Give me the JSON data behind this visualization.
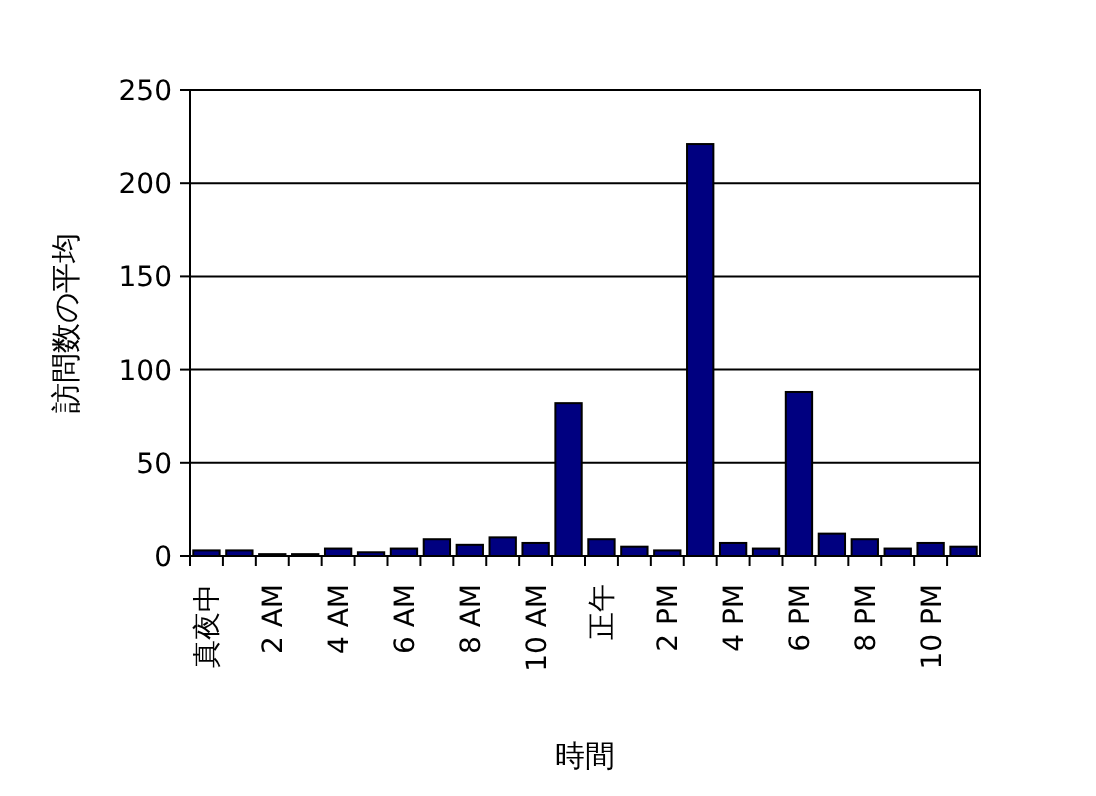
{
  "chart_data": {
    "type": "bar",
    "xlabel": "時間",
    "ylabel": "訪問数の平均",
    "categories": [
      "真夜中",
      null,
      "2 AM",
      null,
      "4 AM",
      null,
      "6 AM",
      null,
      "8 AM",
      null,
      "10 AM",
      null,
      "正午",
      null,
      "2 PM",
      null,
      "4 PM",
      null,
      "6 PM",
      null,
      "8 PM",
      null,
      "10 PM",
      null
    ],
    "values": [
      3,
      3,
      1,
      1,
      4,
      2,
      4,
      9,
      6,
      10,
      7,
      82,
      9,
      5,
      3,
      221,
      7,
      4,
      88,
      12,
      9,
      4,
      7,
      5
    ],
    "color": "#000080",
    "ylim": [
      0,
      250
    ],
    "yticks": [
      0,
      50,
      100,
      150,
      200,
      250
    ],
    "grid": "y"
  }
}
